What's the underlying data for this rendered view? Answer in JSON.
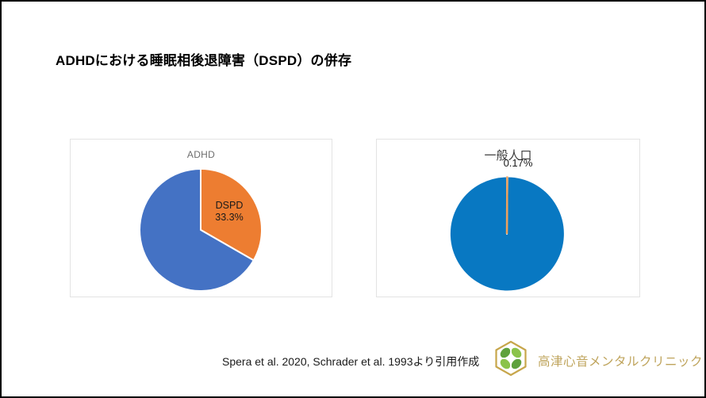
{
  "slide": {
    "title": "ADHDにおける睡眠相後退障害（DSPD）の併存"
  },
  "footer": {
    "citation": "Spera et al. 2020, Schrader et al. 1993より引用作成",
    "clinic_name": "高津心音メンタルクリニック",
    "clinic_logo_icon": "hexagon-clover-icon"
  },
  "colors": {
    "slide_border": "#000000",
    "panel_border": "#e3e3e3",
    "adhd_pie_blue": "#4472c4",
    "adhd_pie_orange": "#ed7d31",
    "general_pie_blue": "#0878c2",
    "general_pie_orange": "#eda05c",
    "adhd_title_gray": "#6e6e6e",
    "general_title_color": "#404040",
    "clinic_gold": "#bfa45c",
    "logo_hexagon_gold": "#c7a64b",
    "logo_leaf_green_dark": "#5fa13d",
    "logo_leaf_green_light": "#8bc34a"
  },
  "chart_data": [
    {
      "type": "pie",
      "title": "ADHD",
      "start_angle_deg": 0,
      "direction": "clockwise",
      "slices": [
        {
          "label": "DSPD",
          "pct_label": "33.3%",
          "value": 33.3,
          "color": "#ed7d31"
        },
        {
          "value": 66.7,
          "color": "#4472c4"
        }
      ]
    },
    {
      "type": "pie",
      "title": "一般人口",
      "start_angle_deg": 0,
      "direction": "clockwise",
      "slices": [
        {
          "pct_label": "0.17%",
          "value": 0.17,
          "color": "#eda05c"
        },
        {
          "value": 99.83,
          "color": "#0878c2"
        }
      ]
    }
  ]
}
